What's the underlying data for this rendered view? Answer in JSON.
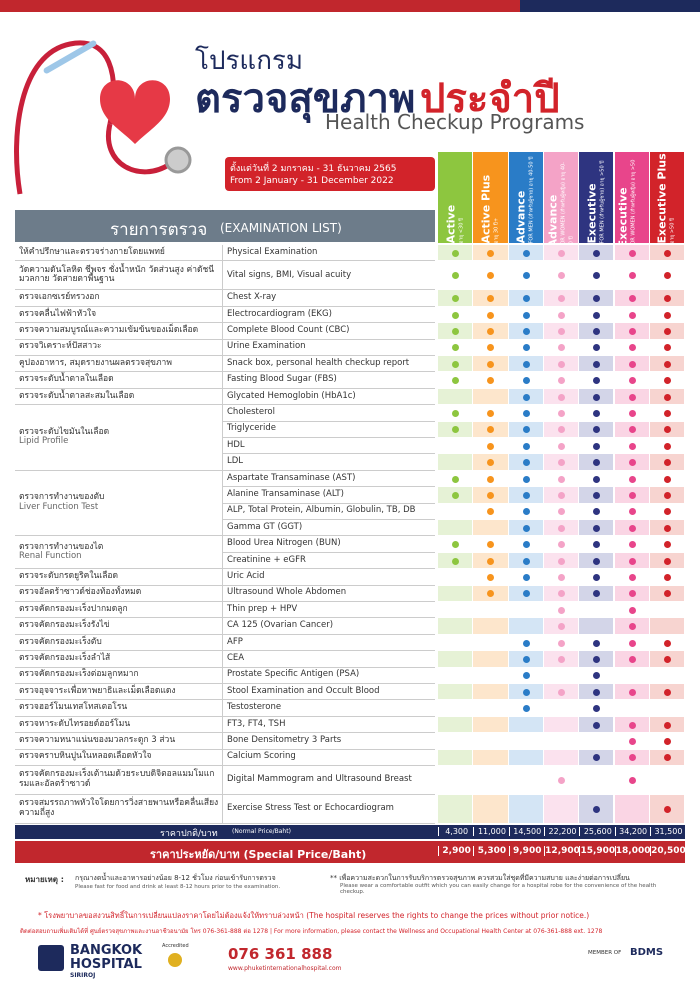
{
  "header": {
    "line1": "โปรแกรม",
    "line2a": "ตรวจสุขภาพ",
    "line2b": "ประจำปี",
    "subtitle": "Health Checkup Programs",
    "date_th": "ตั้งแต่วันที่ 2 มกราคม - 31 ธันวาคม 2565",
    "date_en": "From 2 January - 31 December 2022"
  },
  "programs": [
    {
      "name": "Active",
      "sub": "อายุ <30 ปี",
      "color": "#8dc63f",
      "tint": "#e6f2d6"
    },
    {
      "name": "Active Plus",
      "sub": "อายุ 30 ปี+",
      "color": "#f7941d",
      "tint": "#fde6cc"
    },
    {
      "name": "Advance",
      "sub": "FOR MEN (สำหรับผู้ชาย) อายุ 40-50 ปี",
      "color": "#2a7cc7",
      "tint": "#d4e5f5"
    },
    {
      "name": "Advance",
      "sub": "FOR WOMEN (สำหรับผู้หญิง) อายุ 40-50 ปี",
      "color": "#f4a3c7",
      "tint": "#fbe2ee"
    },
    {
      "name": "Executive",
      "sub": "FOR MEN (สำหรับผู้ชาย) อายุ >50 ปี",
      "color": "#2e3480",
      "tint": "#d3d5e8"
    },
    {
      "name": "Executive",
      "sub": "FOR WOMEN (สำหรับผู้หญิง) อายุ >50 ปี",
      "color": "#e8458b",
      "tint": "#fad5e4"
    },
    {
      "name": "Executive Plus",
      "sub": "อายุ >50 ปี",
      "color": "#d2232a",
      "tint": "#f7d4d0"
    }
  ],
  "table": {
    "heading_th": "รายการตรวจ",
    "heading_en": "(EXAMINATION LIST)",
    "rows": [
      {
        "th": "ให้คำปรึกษาและตรวจร่างกายโดยแพทย์",
        "en": "Physical Examination",
        "inc": [
          true,
          true,
          true,
          true,
          true,
          true,
          true
        ]
      },
      {
        "th": "วัดความดันโลหิต ชีพจร ชั่งน้ำหนัก วัดส่วนสูง ค่าดัชนีมวลกาย วัดสายตาพื้นฐาน",
        "en": "Vital signs, BMI, Visual acuity",
        "inc": [
          true,
          true,
          true,
          true,
          true,
          true,
          true
        ]
      },
      {
        "th": "ตรวจเอกซเรย์ทรวงอก",
        "en": "Chest X-ray",
        "inc": [
          true,
          true,
          true,
          true,
          true,
          true,
          true
        ]
      },
      {
        "th": "ตรวจคลื่นไฟฟ้าหัวใจ",
        "en": "Electrocardiogram (EKG)",
        "inc": [
          true,
          true,
          true,
          true,
          true,
          true,
          true
        ]
      },
      {
        "th": "ตรวจความสมบูรณ์และความเข้มข้นของเม็ดเลือด",
        "en": "Complete Blood Count (CBC)",
        "inc": [
          true,
          true,
          true,
          true,
          true,
          true,
          true
        ]
      },
      {
        "th": "ตรวจวิเคราะห์ปัสสาวะ",
        "en": "Urine Examination",
        "inc": [
          true,
          true,
          true,
          true,
          true,
          true,
          true
        ]
      },
      {
        "th": "คูปองอาหาร, สมุดรายงานผลตรวจสุขภาพ",
        "en": "Snack box, personal health checkup report",
        "inc": [
          true,
          true,
          true,
          true,
          true,
          true,
          true
        ]
      },
      {
        "th": "ตรวจระดับน้ำตาลในเลือด",
        "en": "Fasting Blood Sugar (FBS)",
        "inc": [
          true,
          true,
          true,
          true,
          true,
          true,
          true
        ]
      },
      {
        "th": "ตรวจระดับน้ำตาลสะสมในเลือด",
        "en": "Glycated Hemoglobin (HbA1c)",
        "inc": [
          false,
          false,
          true,
          true,
          true,
          true,
          true
        ]
      },
      {
        "th": "ตรวจระดับไขมันในเลือด",
        "en": "Lipid Profile",
        "items": [
          {
            "en": "Cholesterol",
            "inc": [
              true,
              true,
              true,
              true,
              true,
              true,
              true
            ]
          },
          {
            "en": "Triglyceride",
            "inc": [
              true,
              true,
              true,
              true,
              true,
              true,
              true
            ]
          },
          {
            "en": "HDL",
            "inc": [
              false,
              true,
              true,
              true,
              true,
              true,
              true
            ]
          },
          {
            "en": "LDL",
            "inc": [
              false,
              true,
              true,
              true,
              true,
              true,
              true
            ]
          }
        ]
      },
      {
        "th": "ตรวจการทำงานของตับ",
        "en": "Liver Function Test",
        "items": [
          {
            "en": "Aspartate Transaminase (AST)",
            "inc": [
              true,
              true,
              true,
              true,
              true,
              true,
              true
            ]
          },
          {
            "en": "Alanine Transaminase (ALT)",
            "inc": [
              true,
              true,
              true,
              true,
              true,
              true,
              true
            ]
          },
          {
            "en": "ALP, Total Protein, Albumin, Globulin, TB, DB",
            "inc": [
              false,
              true,
              true,
              true,
              true,
              true,
              true
            ]
          },
          {
            "en": "Gamma GT (GGT)",
            "inc": [
              false,
              false,
              true,
              true,
              true,
              true,
              true
            ]
          }
        ]
      },
      {
        "th": "ตรวจการทำงานของไต",
        "en": "Renal Function",
        "items": [
          {
            "en": "Blood Urea Nitrogen (BUN)",
            "inc": [
              true,
              true,
              true,
              true,
              true,
              true,
              true
            ]
          },
          {
            "en": "Creatinine + eGFR",
            "inc": [
              true,
              true,
              true,
              true,
              true,
              true,
              true
            ]
          }
        ]
      },
      {
        "th": "ตรวจระดับกรดยูริคในเลือด",
        "en": "Uric Acid",
        "inc": [
          false,
          true,
          true,
          true,
          true,
          true,
          true
        ]
      },
      {
        "th": "ตรวจอัลตร้าซาวด์ช่องท้องทั้งหมด",
        "en": "Ultrasound Whole Abdomen",
        "inc": [
          false,
          true,
          true,
          true,
          true,
          true,
          true
        ]
      },
      {
        "th": "ตรวจคัดกรองมะเร็งปากมดลูก",
        "en": "Thin prep + HPV",
        "inc": [
          false,
          false,
          false,
          true,
          false,
          true,
          false
        ]
      },
      {
        "th": "ตรวจคัดกรองมะเร็งรังไข่",
        "en": "CA 125 (Ovarian Cancer)",
        "inc": [
          false,
          false,
          false,
          true,
          false,
          true,
          false
        ]
      },
      {
        "th": "ตรวจคัดกรองมะเร็งตับ",
        "en": "AFP",
        "inc": [
          false,
          false,
          true,
          true,
          true,
          true,
          true
        ]
      },
      {
        "th": "ตรวจคัดกรองมะเร็งลำไส้",
        "en": "CEA",
        "inc": [
          false,
          false,
          true,
          true,
          true,
          true,
          true
        ]
      },
      {
        "th": "ตรวจคัดกรองมะเร็งต่อมลูกหมาก",
        "en": "Prostate Specific Antigen (PSA)",
        "inc": [
          false,
          false,
          true,
          false,
          true,
          false,
          false
        ]
      },
      {
        "th": "ตรวจอุจจาระเพื่อหาพยาธิและเม็ดเลือดแดง",
        "en": "Stool Examination and Occult Blood",
        "inc": [
          false,
          false,
          true,
          true,
          true,
          true,
          true
        ]
      },
      {
        "th": "ตรวจฮอร์โมนเทสโทสเตอโรน",
        "en": "Testosterone",
        "inc": [
          false,
          false,
          true,
          false,
          true,
          false,
          false
        ]
      },
      {
        "th": "ตรวจหาระดับไทรอยด์ฮอร์โมน",
        "en": "FT3, FT4, TSH",
        "inc": [
          false,
          false,
          false,
          false,
          true,
          true,
          true
        ]
      },
      {
        "th": "ตรวจความหนาแน่นของมวลกระดูก 3 ส่วน",
        "en": "Bone Densitometry 3 Parts",
        "inc": [
          false,
          false,
          false,
          false,
          false,
          true,
          true
        ]
      },
      {
        "th": "ตรวจคราบหินปูนในหลอดเลือดหัวใจ",
        "en": "Calcium Scoring",
        "inc": [
          false,
          false,
          false,
          false,
          true,
          true,
          true
        ]
      },
      {
        "th": "ตรวจคัดกรองมะเร็งเต้านมด้วยระบบดิจิตอลแมมโมแกรมและอัลตร้าซาวด์",
        "en": "Digital Mammogram and Ultrasound Breast",
        "inc": [
          false,
          false,
          false,
          true,
          false,
          true,
          false
        ]
      },
      {
        "th": "ตรวจสมรรถภาพหัวใจโดยการวิ่งสายพานหรือคลื่นเสียงความถี่สูง",
        "en": "Exercise Stress Test or Echocardiogram",
        "inc": [
          false,
          false,
          false,
          false,
          true,
          false,
          true
        ]
      }
    ],
    "normal": {
      "label_th": "ราคาปกติ/บาท",
      "label_en": "(Normal Price/Baht)",
      "prices": [
        "4,300",
        "11,000",
        "14,500",
        "22,200",
        "25,600",
        "34,200",
        "31,500"
      ]
    },
    "special": {
      "label": "ราคาประหยัด/บาท (Special Price/Baht)",
      "prices": [
        "2,900",
        "5,300",
        "9,900",
        "12,900",
        "15,900",
        "18,000",
        "20,500"
      ]
    }
  },
  "notes": {
    "label": "หมายเหตุ :",
    "n1_th": "กรุณางดน้ำและอาหารอย่างน้อย 8-12 ชั่วโมง ก่อนเข้ารับการตรวจ",
    "n1_en": "Please fast for food and drink at least 8-12 hours prior to the examination.",
    "n2_th": "** เพื่อความสะดวกในการรับบริการตรวจสุขภาพ ควรสวมใส่ชุดที่มีความสบาย และง่ายต่อการเปลี่ยน",
    "n2_en": "Please wear a comfortable outfit which you can easily change for a hospital robe for the convenience of the health checkup.",
    "disclaimer": "* โรงพยาบาลขอสงวนสิทธิ์ในการเปลี่ยนแปลงราคาโดยไม่ต้องแจ้งให้ทราบล่วงหน้า (The hospital reserves the rights to change the prices without prior notice.)",
    "contact": "ติดต่อสอบถามเพิ่มเติมได้ที่ ศูนย์ตรวจสุขภาพและงานอาชีวอนามัย โทร 076-361-888 ต่อ 1278 | For more information, please contact the Wellness and Occupational Health Center at 076-361-888 ext. 1278"
  },
  "footer": {
    "brand1": "BANGKOK",
    "brand2": "HOSPITAL",
    "brand3": "SIRIROJ",
    "accredited": "Accredited",
    "phone": "076 361 888",
    "web": "www.phuketinternationalhospital.com",
    "member": "MEMBER OF",
    "bdms": "BDMS"
  }
}
